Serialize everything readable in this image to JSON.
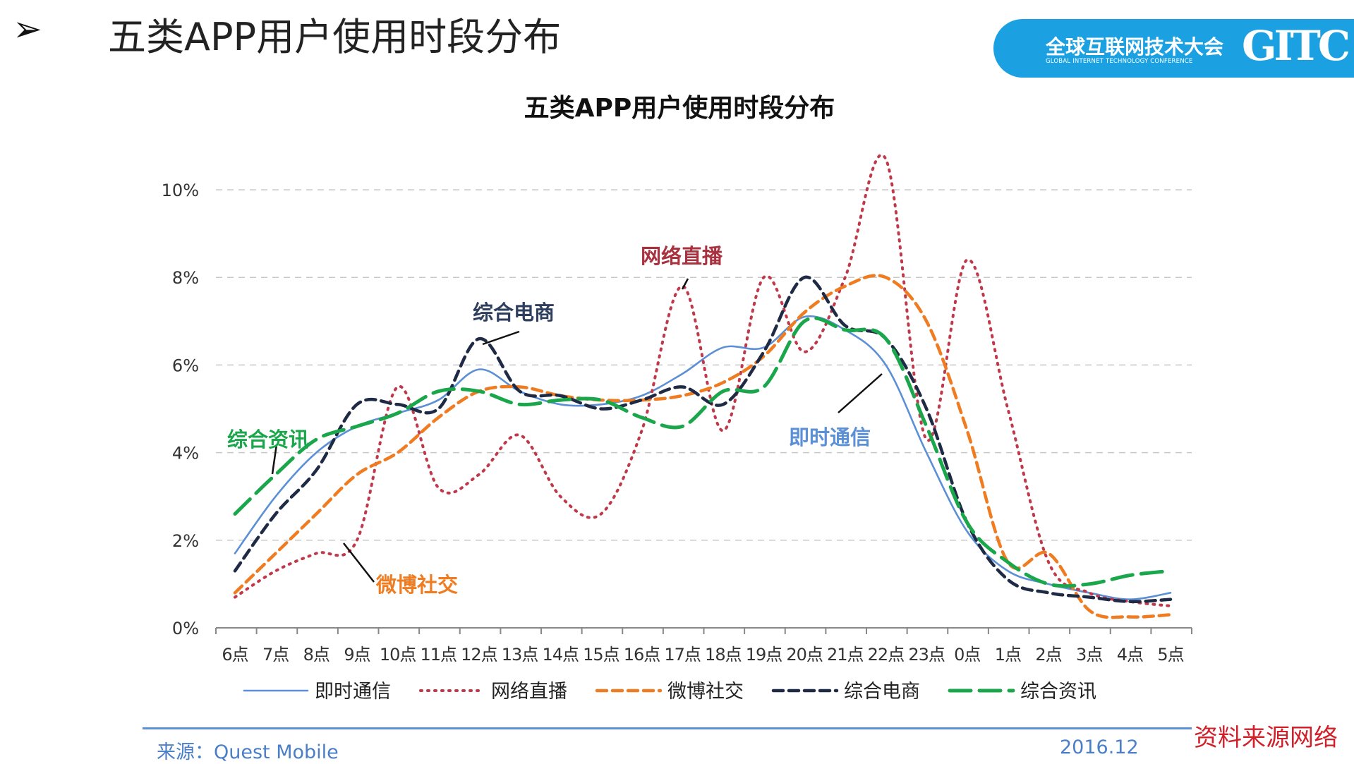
{
  "slide": {
    "bullet_icon": "arrow-bullet-icon",
    "title": "五类APP用户使用时段分布",
    "banner": {
      "cn": "全球互联网技术大会",
      "en": "GLOBAL INTERNET TECHNOLOGY CONFERENCE",
      "logo": "GITC",
      "color": "#1ba1e2"
    },
    "source": "来源：Quest Mobile",
    "date": "2016.12",
    "credit": "资料来源网络",
    "footer_line_color": "#5b8fd6"
  },
  "chart_data": {
    "type": "line",
    "title": "五类APP用户使用时段分布",
    "xlabel": "",
    "ylabel": "",
    "categories": [
      "6点",
      "7点",
      "8点",
      "9点",
      "10点",
      "11点",
      "12点",
      "13点",
      "14点",
      "15点",
      "16点",
      "17点",
      "18点",
      "19点",
      "20点",
      "21点",
      "22点",
      "23点",
      "0点",
      "1点",
      "2点",
      "3点",
      "4点",
      "5点"
    ],
    "ylim": [
      0,
      10
    ],
    "yticks": [
      "0%",
      "2%",
      "4%",
      "6%",
      "8%",
      "10%"
    ],
    "ytick_values": [
      0,
      2,
      4,
      6,
      8,
      10
    ],
    "grid": true,
    "legend_position": "bottom",
    "series": [
      {
        "name": "即时通信",
        "color": "#5b8fd6",
        "style": "solid",
        "values": [
          1.7,
          3.0,
          4.0,
          4.6,
          4.9,
          5.2,
          5.9,
          5.4,
          5.1,
          5.1,
          5.3,
          5.8,
          6.4,
          6.4,
          7.1,
          6.8,
          6.0,
          4.0,
          2.2,
          1.3,
          1.0,
          0.8,
          0.65,
          0.8
        ]
      },
      {
        "name": "网络直播",
        "color": "#c0394b",
        "style": "dotted",
        "values": [
          0.7,
          1.3,
          1.7,
          2.0,
          5.5,
          3.2,
          3.5,
          4.4,
          3.0,
          2.6,
          4.5,
          7.8,
          4.5,
          8.0,
          6.3,
          8.0,
          10.7,
          4.3,
          8.4,
          5.0,
          1.5,
          0.8,
          0.6,
          0.5
        ]
      },
      {
        "name": "微博社交",
        "color": "#f07c22",
        "style": "dashed",
        "values": [
          0.8,
          1.7,
          2.6,
          3.5,
          4.0,
          4.8,
          5.4,
          5.5,
          5.3,
          5.2,
          5.2,
          5.3,
          5.6,
          6.2,
          7.2,
          7.8,
          8.0,
          7.0,
          4.5,
          1.5,
          1.7,
          0.4,
          0.25,
          0.3
        ]
      },
      {
        "name": "综合电商",
        "color": "#1f2a44",
        "style": "dashed",
        "values": [
          1.3,
          2.6,
          3.6,
          5.1,
          5.1,
          5.0,
          6.6,
          5.4,
          5.3,
          5.0,
          5.2,
          5.5,
          5.1,
          6.3,
          8.0,
          6.9,
          6.6,
          5.0,
          2.4,
          1.1,
          0.8,
          0.7,
          0.6,
          0.65
        ]
      },
      {
        "name": "综合资讯",
        "color": "#1aa64a",
        "style": "long-dashed",
        "values": [
          2.6,
          3.5,
          4.3,
          4.6,
          4.9,
          5.4,
          5.4,
          5.1,
          5.2,
          5.2,
          4.8,
          4.6,
          5.4,
          5.5,
          7.0,
          6.8,
          6.6,
          4.6,
          2.4,
          1.5,
          1.0,
          1.0,
          1.2,
          1.3
        ]
      }
    ],
    "annotations": [
      {
        "text": "网络直播",
        "series": "网络直播"
      },
      {
        "text": "综合电商",
        "series": "综合电商"
      },
      {
        "text": "综合资讯",
        "series": "综合资讯"
      },
      {
        "text": "微博社交",
        "series": "微博社交"
      },
      {
        "text": "即时通信",
        "series": "即时通信"
      }
    ]
  }
}
